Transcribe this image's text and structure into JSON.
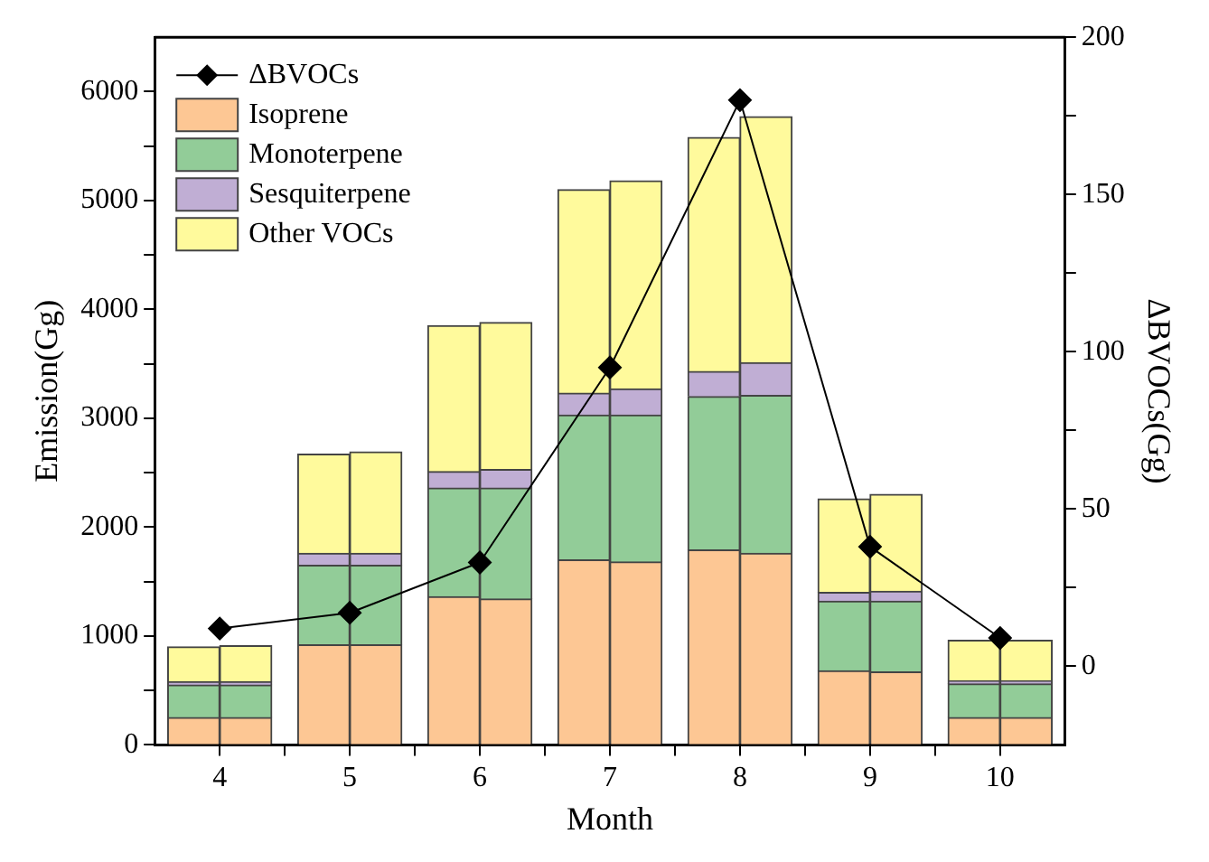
{
  "chart_data": {
    "type": "bar",
    "stacked": true,
    "xlabel": "Month",
    "ylabel": "Emission(Gg)",
    "y2label": "ΔBVOCs(Gg)",
    "xlim": [
      3.5,
      10.5
    ],
    "xticks": [
      4,
      {
        "value": 4.5,
        "label": null
      },
      5,
      {
        "value": 5.5,
        "label": null
      },
      6,
      {
        "value": 6.5,
        "label": null
      },
      7,
      {
        "value": 7.5,
        "label": null
      },
      8,
      {
        "value": 8.5,
        "label": null
      },
      9,
      {
        "value": 9.5,
        "label": null
      },
      10
    ],
    "series": [
      {
        "name": "ΔBVOCs",
        "type": "line",
        "axis": "y2",
        "color": "#000000",
        "marker": "diamond",
        "x": [
          4,
          5,
          6,
          7,
          8,
          9,
          10
        ],
        "values": [
          12,
          17,
          33,
          95,
          180,
          38,
          9
        ]
      },
      {
        "name": "Isoprene",
        "color": "#fdc794",
        "x": [
          3.8,
          4.2,
          4.8,
          5.2,
          5.8,
          6.2,
          6.8,
          7.2,
          7.8,
          8.2,
          8.8,
          9.2,
          9.8,
          10.2
        ],
        "values": [
          250,
          250,
          920,
          920,
          1360,
          1340,
          1700,
          1680,
          1790,
          1760,
          680,
          670,
          250,
          250
        ]
      },
      {
        "name": "Monoterpene",
        "color": "#92cc98",
        "x": [
          3.8,
          4.2,
          4.8,
          5.2,
          5.8,
          6.2,
          6.8,
          7.2,
          7.8,
          8.2,
          8.8,
          9.2,
          9.8,
          10.2
        ],
        "values": [
          300,
          300,
          730,
          730,
          1000,
          1020,
          1330,
          1350,
          1410,
          1450,
          640,
          650,
          310,
          310
        ]
      },
      {
        "name": "Sesquiterpene",
        "color": "#c0aed4",
        "x": [
          3.8,
          4.2,
          4.8,
          5.2,
          5.8,
          6.2,
          6.8,
          7.2,
          7.8,
          8.2,
          8.8,
          9.2,
          9.8,
          10.2
        ],
        "values": [
          30,
          30,
          110,
          110,
          150,
          170,
          200,
          240,
          230,
          300,
          80,
          90,
          30,
          30
        ]
      },
      {
        "name": "Other VOCs",
        "color": "#fffa9c",
        "x": [
          3.8,
          4.2,
          4.8,
          5.2,
          5.8,
          6.2,
          6.8,
          7.2,
          7.8,
          8.2,
          8.8,
          9.2,
          9.8,
          10.2
        ],
        "values": [
          320,
          330,
          910,
          930,
          1340,
          1350,
          1870,
          1910,
          2150,
          2260,
          860,
          890,
          370,
          370
        ]
      }
    ],
    "ylim": [
      0,
      6500
    ],
    "yticks": [
      0,
      {
        "value": 500,
        "label": null
      },
      1000,
      {
        "value": 1500,
        "label": null
      },
      2000,
      {
        "value": 2500,
        "label": null
      },
      3000,
      {
        "value": 3500,
        "label": null
      },
      4000,
      {
        "value": 4500,
        "label": null
      },
      5000,
      {
        "value": 5500,
        "label": null
      },
      6000
    ],
    "y2lim": [
      -25,
      200
    ],
    "y2ticks": [
      0,
      {
        "value": 25,
        "label": null
      },
      50,
      {
        "value": 75,
        "label": null
      },
      100,
      {
        "value": 125,
        "label": null
      },
      150,
      {
        "value": 175,
        "label": null
      },
      200
    ],
    "grid": false,
    "legend": "top left"
  }
}
